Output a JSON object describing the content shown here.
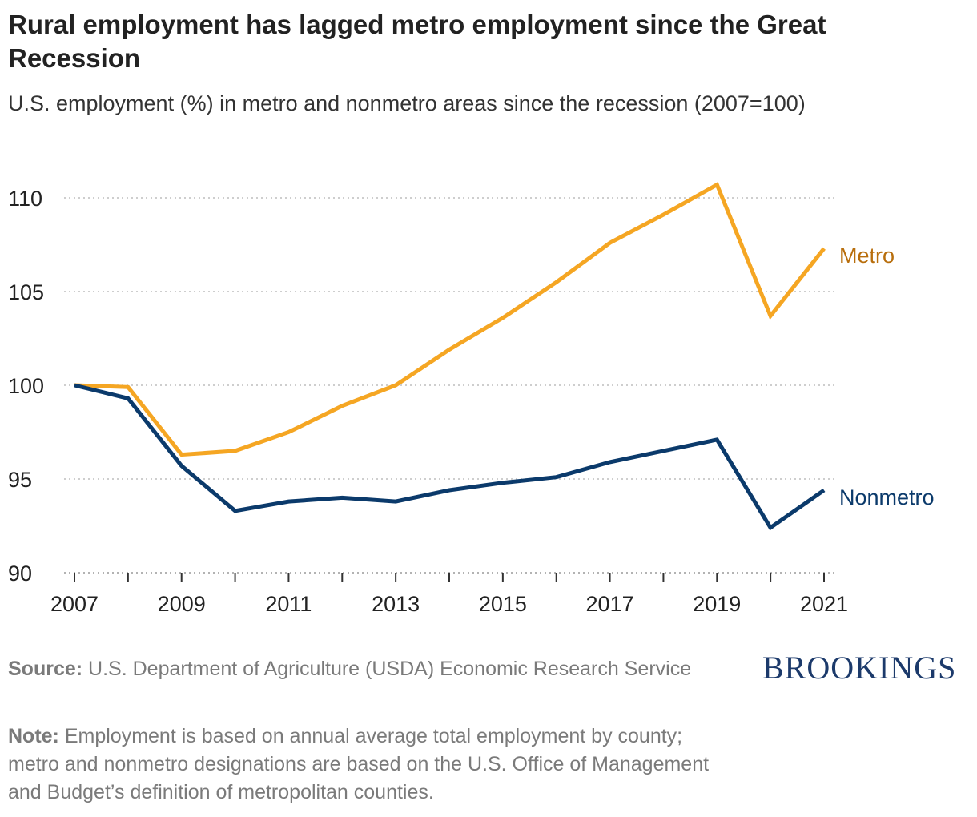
{
  "header": {
    "title": "Rural employment has lagged metro employment since the Great Recession",
    "subtitle": "U.S. employment (%) in metro and nonmetro areas since the recession (2007=100)"
  },
  "chart_data": {
    "type": "line",
    "title": "Rural employment has lagged metro employment since the Great Recession",
    "subtitle": "U.S. employment (%) in metro and nonmetro areas since the recession (2007=100)",
    "xlabel": "",
    "ylabel": "",
    "x": [
      2007,
      2008,
      2009,
      2010,
      2011,
      2012,
      2013,
      2014,
      2015,
      2016,
      2017,
      2018,
      2019,
      2020,
      2021
    ],
    "xticks": [
      "2007",
      "2009",
      "2011",
      "2013",
      "2015",
      "2017",
      "2019",
      "2021"
    ],
    "yticks": [
      "90",
      "95",
      "100",
      "105",
      "110"
    ],
    "ylim": [
      90,
      110
    ],
    "grid": "horizontal-dotted",
    "series": [
      {
        "name": "Metro",
        "color": "#f5a623",
        "label_color": "#b86e0c",
        "values": [
          100,
          99.9,
          96.3,
          96.5,
          97.5,
          98.9,
          100.0,
          101.9,
          103.6,
          105.5,
          107.6,
          109.1,
          110.7,
          103.7,
          107.3
        ]
      },
      {
        "name": "Nonmetro",
        "color": "#0b3a6b",
        "label_color": "#0b3a6b",
        "values": [
          100,
          99.3,
          95.7,
          93.3,
          93.8,
          94.0,
          93.8,
          94.4,
          94.8,
          95.1,
          95.9,
          96.5,
          97.1,
          92.4,
          94.4
        ]
      }
    ]
  },
  "footer": {
    "source_label": "Source:",
    "source_text": "U.S. Department of Agriculture (USDA) Economic Research Service",
    "note_label": "Note:",
    "note_text": "Employment is based on annual average total employment by county; metro and nonmetro designations are based on the U.S. Office of Management and Budget’s definition of metropolitan counties.",
    "brand": "BROOKINGS"
  }
}
